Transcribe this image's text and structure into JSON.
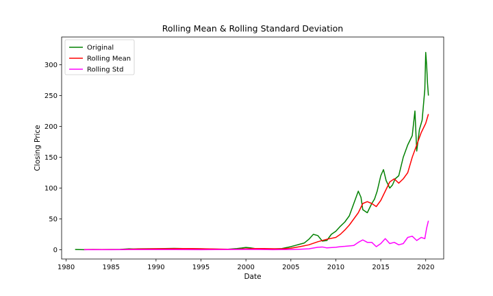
{
  "chart_data": {
    "type": "line",
    "title": "Rolling Mean & Rolling Standard Deviation",
    "xlabel": "Date",
    "ylabel": "Closing Price",
    "xlim": [
      1979.5,
      2022.0
    ],
    "ylim": [
      -15,
      345
    ],
    "x_ticks": [
      1980,
      1985,
      1990,
      1995,
      2000,
      2005,
      2010,
      2015,
      2020
    ],
    "y_ticks": [
      0,
      50,
      100,
      150,
      200,
      250,
      300
    ],
    "grid": false,
    "legend_position": "top-left",
    "series": [
      {
        "name": "Original",
        "color": "#008000",
        "x": [
          1981.0,
          1982.0,
          1983.0,
          1984.0,
          1985.0,
          1986.0,
          1987.0,
          1987.5,
          1988.0,
          1989.0,
          1990.0,
          1991.0,
          1992.0,
          1993.0,
          1994.0,
          1995.0,
          1996.0,
          1997.0,
          1998.0,
          1999.0,
          1999.5,
          2000.0,
          2000.5,
          2001.0,
          2002.0,
          2003.0,
          2004.0,
          2005.0,
          2005.5,
          2006.0,
          2006.5,
          2007.0,
          2007.5,
          2008.0,
          2008.5,
          2009.0,
          2009.5,
          2010.0,
          2010.5,
          2011.0,
          2011.5,
          2012.0,
          2012.5,
          2012.8,
          2013.0,
          2013.5,
          2014.0,
          2014.3,
          2014.6,
          2015.0,
          2015.3,
          2015.6,
          2016.0,
          2016.3,
          2016.6,
          2017.0,
          2017.5,
          2018.0,
          2018.5,
          2018.8,
          2019.0,
          2019.3,
          2019.6,
          2019.9,
          2020.0,
          2020.1,
          2020.2,
          2020.3
        ],
        "y": [
          0.4,
          0.2,
          0.4,
          0.3,
          0.4,
          0.6,
          1.5,
          1.2,
          1.5,
          1.6,
          1.7,
          1.9,
          2.2,
          2.0,
          1.6,
          1.5,
          1.3,
          0.8,
          0.9,
          2.0,
          2.8,
          3.8,
          3.0,
          2.0,
          1.5,
          1.3,
          2.0,
          5.0,
          7.0,
          9.0,
          11.0,
          17.0,
          25.0,
          23.0,
          14.0,
          15.0,
          25.0,
          30.0,
          38.0,
          45.0,
          55.0,
          75.0,
          95.0,
          85.0,
          65.0,
          60.0,
          75.0,
          82.0,
          95.0,
          120.0,
          130.0,
          112.0,
          100.0,
          105.0,
          115.0,
          120.0,
          150.0,
          170.0,
          185.0,
          225.0,
          160.0,
          195.0,
          210.0,
          260.0,
          320.0,
          300.0,
          270.0,
          250.0
        ]
      },
      {
        "name": "Rolling Mean",
        "color": "#ff0000",
        "x": [
          1982.0,
          1983.0,
          1984.0,
          1985.0,
          1986.0,
          1987.0,
          1988.0,
          1989.0,
          1990.0,
          1991.0,
          1992.0,
          1993.0,
          1994.0,
          1995.0,
          1996.0,
          1997.0,
          1998.0,
          1999.0,
          2000.0,
          2001.0,
          2002.0,
          2003.0,
          2004.0,
          2005.0,
          2006.0,
          2007.0,
          2008.0,
          2009.0,
          2010.0,
          2010.5,
          2011.0,
          2011.5,
          2012.0,
          2012.5,
          2013.0,
          2013.5,
          2014.0,
          2014.5,
          2015.0,
          2015.5,
          2016.0,
          2016.5,
          2017.0,
          2017.5,
          2018.0,
          2018.5,
          2019.0,
          2019.5,
          2020.0,
          2020.3
        ],
        "y": [
          0.4,
          0.4,
          0.4,
          0.4,
          0.4,
          0.8,
          1.2,
          1.4,
          1.6,
          1.7,
          1.8,
          2.0,
          1.9,
          1.6,
          1.4,
          1.1,
          0.9,
          1.0,
          1.5,
          2.0,
          2.0,
          1.6,
          1.5,
          2.5,
          5.0,
          8.0,
          13.0,
          17.0,
          20.0,
          25.0,
          32.0,
          40.0,
          50.0,
          60.0,
          75.0,
          78.0,
          75.0,
          70.0,
          80.0,
          95.0,
          110.0,
          115.0,
          108.0,
          115.0,
          125.0,
          150.0,
          170.0,
          190.0,
          205.0,
          220.0
        ]
      },
      {
        "name": "Rolling Std",
        "color": "#ff00ff",
        "x": [
          1982.0,
          1985.0,
          1987.0,
          1990.0,
          1995.0,
          2000.0,
          2003.0,
          2005.0,
          2006.0,
          2007.0,
          2008.0,
          2008.5,
          2009.0,
          2010.0,
          2010.5,
          2011.0,
          2012.0,
          2012.5,
          2013.0,
          2013.5,
          2014.0,
          2014.5,
          2015.0,
          2015.5,
          2016.0,
          2016.5,
          2017.0,
          2017.5,
          2018.0,
          2018.5,
          2019.0,
          2019.5,
          2019.9,
          2020.1,
          2020.3
        ],
        "y": [
          0.1,
          0.1,
          0.3,
          0.3,
          0.2,
          0.6,
          0.2,
          0.4,
          0.8,
          1.5,
          4.0,
          4.5,
          3.0,
          4.0,
          5.0,
          5.5,
          7.0,
          12.0,
          16.0,
          12.0,
          12.0,
          5.0,
          10.0,
          18.0,
          10.0,
          12.0,
          8.0,
          10.0,
          20.0,
          22.0,
          15.0,
          20.0,
          18.0,
          35.0,
          47.0
        ]
      }
    ]
  }
}
